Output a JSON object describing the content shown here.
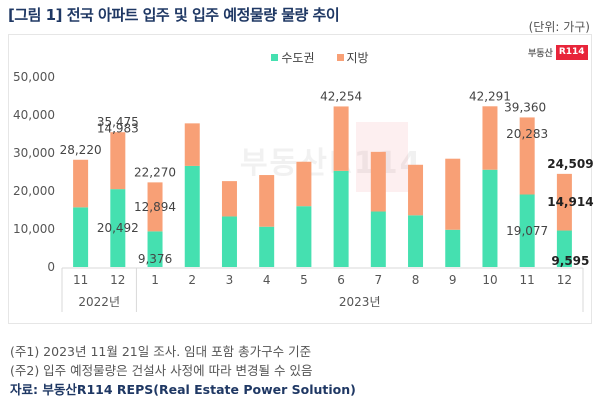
{
  "header": {
    "title": "[그림 1] 전국 아파트 입주 및 입주 예정물량 물량 추이",
    "unit": "(단위: 가구)"
  },
  "logo": {
    "text": "부동산",
    "badge": "R114"
  },
  "watermark": {
    "text": "부동산R114"
  },
  "colors": {
    "capital": "#45e0b0",
    "local": "#f8a076",
    "text": "#444444",
    "title": "#1f3864"
  },
  "chart_data": {
    "type": "bar",
    "stacked": true,
    "title": "전국 아파트 입주 및 입주 예정물량 물량 추이",
    "xlabel": "",
    "ylabel": "",
    "ylim": [
      0,
      50000
    ],
    "yticks": [
      0,
      10000,
      20000,
      30000,
      40000,
      50000
    ],
    "ytick_labels": [
      "0",
      "10,000",
      "20,000",
      "30,000",
      "40,000",
      "50,000"
    ],
    "grid": false,
    "legend_position": "top-center",
    "categories": [
      "11",
      "12",
      "1",
      "2",
      "3",
      "4",
      "5",
      "6",
      "7",
      "8",
      "9",
      "10",
      "11",
      "12"
    ],
    "groups": [
      {
        "label": "2022년",
        "count": 2
      },
      {
        "label": "2023년",
        "count": 12
      }
    ],
    "series": [
      {
        "name": "수도권",
        "color": "#45e0b0",
        "values": [
          15700,
          20492,
          9376,
          26600,
          13300,
          10600,
          16000,
          25300,
          14600,
          13600,
          9800,
          25600,
          19077,
          9595
        ]
      },
      {
        "name": "지방",
        "color": "#f8a076",
        "values": [
          12520,
          14983,
          12894,
          11200,
          9300,
          13600,
          11700,
          16954,
          15700,
          13300,
          18700,
          16691,
          20283,
          14914
        ]
      }
    ],
    "totals": [
      28220,
      35475,
      22270,
      37800,
      22600,
      24200,
      27700,
      42254,
      30300,
      26900,
      28500,
      42291,
      39360,
      24509
    ],
    "annotations": [
      {
        "index": 0,
        "total": "28,220"
      },
      {
        "index": 1,
        "total": "35,475",
        "local": "14,983",
        "capital": "20,492"
      },
      {
        "index": 2,
        "total": "22,270",
        "local": "12,894",
        "capital": "9,376"
      },
      {
        "index": 7,
        "total": "42,254"
      },
      {
        "index": 11,
        "total": "42,291"
      },
      {
        "index": 12,
        "total": "39,360",
        "local": "20,283",
        "capital": "19,077"
      },
      {
        "index": 13,
        "total": "24,509",
        "local": "14,914",
        "capital": "9,595",
        "bold": true
      }
    ]
  },
  "notes": [
    "(주1) 2023년 11월 21일 조사. 임대 포함 총가구수 기준",
    "(주2) 입주 예정물량은 건설사 사정에 따라 변경될 수 있음"
  ],
  "source": "자료: 부동산R114 REPS(Real Estate Power Solution)"
}
